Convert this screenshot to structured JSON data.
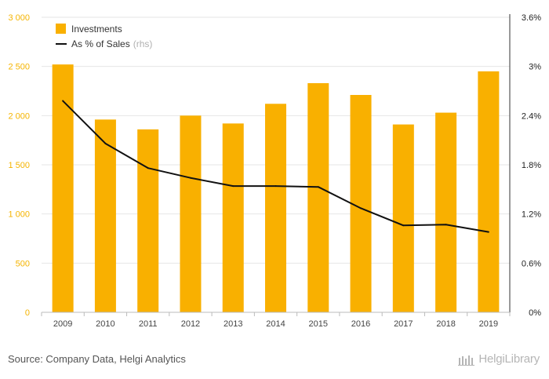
{
  "colors": {
    "bar": "#f9b000",
    "line": "#111111",
    "left_axis_text": "#f5b400",
    "grid": "#e6e6e6"
  },
  "chart_data": {
    "type": "bar",
    "categories": [
      "2009",
      "2010",
      "2011",
      "2012",
      "2013",
      "2014",
      "2015",
      "2016",
      "2017",
      "2018",
      "2019"
    ],
    "series": [
      {
        "name": "Investments",
        "type": "bar",
        "axis": "left",
        "values": [
          2520,
          1960,
          1860,
          2000,
          1920,
          2120,
          2330,
          2210,
          1910,
          2030,
          2450
        ]
      },
      {
        "name": "As % of Sales",
        "name_note": "(rhs)",
        "type": "line",
        "axis": "right",
        "values": [
          2.58,
          2.06,
          1.76,
          1.64,
          1.54,
          1.54,
          1.53,
          1.27,
          1.06,
          1.07,
          0.98
        ]
      }
    ],
    "left_axis": {
      "range": [
        0,
        3000
      ],
      "ticks": [
        0,
        500,
        1000,
        1500,
        2000,
        2500,
        3000
      ],
      "tick_labels": [
        "0",
        "500",
        "1 000",
        "1 500",
        "2 000",
        "2 500",
        "3 000"
      ]
    },
    "right_axis": {
      "range": [
        0,
        3.6
      ],
      "ticks": [
        0,
        0.6,
        1.2,
        1.8,
        2.4,
        3.0,
        3.6
      ],
      "tick_labels": [
        "0%",
        "0.6%",
        "1.2%",
        "1.8%",
        "2.4%",
        "3%",
        "3.6%"
      ]
    },
    "legend_position": "top-left",
    "grid": true
  },
  "footer": {
    "source": "Source: Company Data, Helgi Analytics",
    "brand": "HelgiLibrary"
  }
}
